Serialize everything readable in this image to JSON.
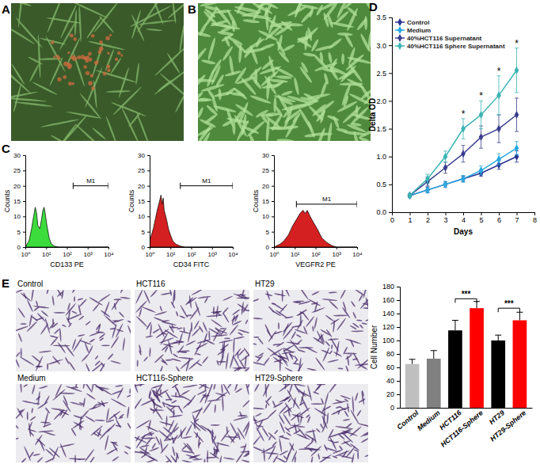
{
  "panel_labels": [
    "A",
    "B",
    "C",
    "D",
    "E"
  ],
  "image_labels": [
    "Control",
    "HCT116",
    "HT29",
    "Medium",
    "HCT116-Sphere",
    "HT29-Sphere"
  ],
  "chart_data": [
    {
      "type": "area",
      "xlabel": "CD133 PE",
      "ylabel": "Counts",
      "log": "x",
      "x": [
        1,
        1.5,
        2,
        2.5,
        3,
        3.5,
        4,
        5,
        6,
        7,
        8,
        9,
        11,
        14,
        18,
        25,
        40,
        100,
        10000
      ],
      "values": [
        0,
        2,
        6,
        10,
        13,
        11,
        7,
        6,
        9,
        12,
        13,
        11,
        7,
        3,
        1,
        0.3,
        0,
        0,
        0
      ],
      "color": "#3ddc3d",
      "xlim": [
        1,
        10000
      ],
      "xticks": [
        {
          "value": 1,
          "label": "10⁰"
        },
        {
          "value": 10,
          "label": "10¹"
        },
        {
          "value": 100,
          "label": "10²"
        },
        {
          "value": 1000,
          "label": "10³"
        },
        {
          "value": 10000,
          "label": "10⁴"
        }
      ],
      "ylim": [
        0,
        30
      ],
      "yticks": [
        0,
        5,
        10,
        15,
        20,
        25,
        30
      ],
      "gate": {
        "label": "M1",
        "range": [
          200,
          10000
        ],
        "y": 20
      }
    },
    {
      "type": "area",
      "xlabel": "CD34 FITC",
      "ylabel": "Counts",
      "log": "x",
      "x": [
        1,
        1.5,
        2,
        2.5,
        3,
        3.5,
        4,
        4.5,
        5,
        6,
        7,
        8,
        10,
        13,
        18,
        30,
        50,
        10000
      ],
      "values": [
        2,
        6,
        10,
        13,
        15,
        17,
        14,
        16,
        12,
        10,
        8,
        6,
        4,
        2,
        1,
        0.3,
        0,
        0
      ],
      "color": "#d42020",
      "xlim": [
        1,
        10000
      ],
      "xticks": [
        {
          "value": 1,
          "label": "10⁰"
        },
        {
          "value": 10,
          "label": "10¹"
        },
        {
          "value": 100,
          "label": "10²"
        },
        {
          "value": 1000,
          "label": "10³"
        },
        {
          "value": 10000,
          "label": "10⁴"
        }
      ],
      "ylim": [
        0,
        30
      ],
      "yticks": [
        0,
        5,
        10,
        15,
        20,
        25,
        30
      ],
      "gate": {
        "label": "M1",
        "range": [
          30,
          10000
        ],
        "y": 20
      }
    },
    {
      "type": "area",
      "xlabel": "VEGFR2 PE",
      "ylabel": "Counts",
      "log": "x",
      "x": [
        1,
        2,
        3,
        5,
        8,
        12,
        18,
        25,
        32,
        40,
        55,
        80,
        120,
        200,
        350,
        600,
        1000,
        10000
      ],
      "values": [
        0,
        1,
        2,
        4,
        7,
        9,
        11,
        12,
        11,
        12,
        10,
        8,
        6,
        3,
        1.5,
        0.5,
        0,
        0
      ],
      "color": "#d42020",
      "xlim": [
        1,
        10000
      ],
      "xticks": [
        {
          "value": 1,
          "label": "10⁰"
        },
        {
          "value": 10,
          "label": "10¹"
        },
        {
          "value": 100,
          "label": "10²"
        },
        {
          "value": 1000,
          "label": "10³"
        },
        {
          "value": 10000,
          "label": "10⁴"
        }
      ],
      "ylim": [
        0,
        30
      ],
      "yticks": [
        0,
        5,
        10,
        15,
        20,
        25,
        30
      ],
      "gate": {
        "label": "M1",
        "range": [
          12,
          10000
        ],
        "y": 14
      }
    },
    {
      "type": "line",
      "xlabel": "Days",
      "ylabel": "Delta OD",
      "x": [
        1,
        2,
        3,
        4,
        5,
        6,
        7
      ],
      "series": [
        {
          "name": "Control",
          "color": "#283593",
          "marker": "diamond",
          "values": [
            0.3,
            0.4,
            0.5,
            0.6,
            0.7,
            0.85,
            1.0
          ],
          "errors": [
            0.02,
            0.05,
            0.05,
            0.05,
            0.05,
            0.08,
            0.1
          ]
        },
        {
          "name": "Medium",
          "color": "#29a8e0",
          "marker": "diamond",
          "values": [
            0.3,
            0.4,
            0.5,
            0.6,
            0.75,
            0.95,
            1.15
          ],
          "errors": [
            0.02,
            0.05,
            0.05,
            0.06,
            0.08,
            0.1,
            0.12
          ]
        },
        {
          "name": "40%HCT116 Supernatant",
          "color": "#3b3f8f",
          "marker": "diamond",
          "values": [
            0.3,
            0.55,
            0.8,
            1.05,
            1.35,
            1.5,
            1.75
          ],
          "errors": [
            0.03,
            0.08,
            0.1,
            0.15,
            0.2,
            0.25,
            0.3
          ]
        },
        {
          "name": "40%HCT116 Sphere Supernatant",
          "color": "#3cb4b4",
          "marker": "diamond",
          "values": [
            0.3,
            0.6,
            1.0,
            1.5,
            1.75,
            2.1,
            2.55
          ],
          "errors": [
            0.03,
            0.08,
            0.1,
            0.18,
            0.25,
            0.35,
            0.4
          ]
        }
      ],
      "xlim": [
        0,
        8
      ],
      "xticks": [
        0,
        1,
        2,
        3,
        4,
        5,
        6,
        7,
        8
      ],
      "ylim": [
        0,
        3.5
      ],
      "yticks": [
        {
          "value": 0,
          "label": "0.0"
        },
        {
          "value": 0.5,
          "label": "0.5"
        },
        {
          "value": 1,
          "label": "1.0"
        },
        {
          "value": 1.5,
          "label": "1.5"
        },
        {
          "value": 2,
          "label": "2.0"
        },
        {
          "value": 2.5,
          "label": "2.5"
        },
        {
          "value": 3,
          "label": "3.0"
        },
        {
          "value": 3.5,
          "label": "3.5"
        }
      ],
      "legend": "upper left",
      "annotations": [
        {
          "text": "*",
          "x": 4,
          "y": 1.78
        },
        {
          "text": "*",
          "x": 5,
          "y": 2.1
        },
        {
          "text": "*",
          "x": 6,
          "y": 2.55
        },
        {
          "text": "*",
          "x": 7,
          "y": 3.05
        }
      ]
    },
    {
      "type": "bar",
      "ylabel": "Cell Number",
      "categories": [
        "Control",
        "Medium",
        "HCT116",
        "HCT116-Sphere",
        "HT29",
        "HT29-Sphere"
      ],
      "values": [
        65,
        73,
        115,
        148,
        100,
        130
      ],
      "errors": [
        7,
        12,
        15,
        10,
        8,
        12
      ],
      "colors": [
        "#bfbfbf",
        "#808080",
        "#000000",
        "#ff0000",
        "#000000",
        "#ff0000"
      ],
      "ylim": [
        0,
        180
      ],
      "yticks": [
        0,
        20,
        40,
        60,
        80,
        100,
        120,
        140,
        160,
        180
      ],
      "significance": [
        {
          "label": "***",
          "between": [
            "HCT116",
            "HCT116-Sphere"
          ],
          "y": 162
        },
        {
          "label": "***",
          "between": [
            "HT29",
            "HT29-Sphere"
          ],
          "y": 148
        }
      ]
    }
  ]
}
